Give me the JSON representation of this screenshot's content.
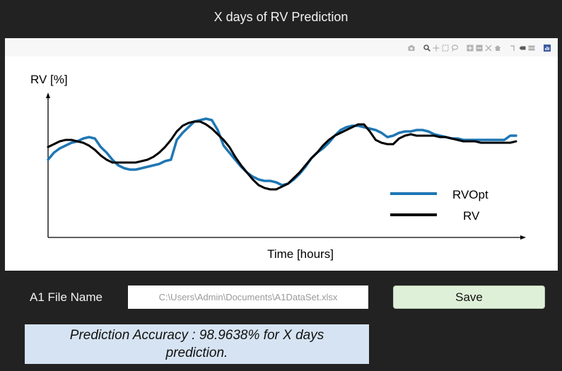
{
  "window": {
    "title": "X days of RV Prediction"
  },
  "modebar": {
    "buttons": [
      "camera-icon",
      "zoom-icon",
      "pan-icon",
      "box-select-icon",
      "lasso-select-icon",
      "zoom-in-icon",
      "zoom-out-icon",
      "autoscale-icon",
      "home-icon",
      "spike-lines-icon",
      "hover-closest-icon",
      "hover-compare-icon",
      "plotly-logo-icon"
    ]
  },
  "chart_data": {
    "type": "line",
    "ylabel": "RV [%]",
    "xlabel": "Time [hours]",
    "legend_position": "right",
    "axis_ticks": "none",
    "grid": false,
    "x": [
      0,
      1,
      2,
      3,
      4,
      5,
      6,
      7,
      8,
      9,
      10,
      11,
      12,
      13,
      14,
      15,
      16,
      17,
      18,
      19,
      20,
      21,
      22,
      23,
      24,
      25,
      26,
      27,
      28,
      29,
      30,
      31,
      32,
      33,
      34,
      35,
      36,
      37,
      38,
      39,
      40,
      41,
      42,
      43,
      44,
      45,
      46,
      47,
      48,
      49,
      50,
      51,
      52,
      53,
      54,
      55,
      56,
      57,
      58,
      59,
      60,
      61,
      62,
      63,
      64,
      65,
      66,
      67,
      68,
      69,
      70,
      71,
      72,
      73,
      74,
      75,
      76,
      77,
      78,
      79,
      80
    ],
    "series": [
      {
        "name": "RVOpt",
        "color": "#1f77b4",
        "values": [
          0.55,
          0.6,
          0.63,
          0.65,
          0.67,
          0.68,
          0.7,
          0.71,
          0.7,
          0.64,
          0.6,
          0.55,
          0.51,
          0.49,
          0.48,
          0.48,
          0.49,
          0.5,
          0.51,
          0.52,
          0.54,
          0.55,
          0.69,
          0.74,
          0.78,
          0.82,
          0.83,
          0.84,
          0.83,
          0.76,
          0.65,
          0.6,
          0.55,
          0.5,
          0.46,
          0.43,
          0.41,
          0.4,
          0.4,
          0.39,
          0.37,
          0.38,
          0.41,
          0.45,
          0.5,
          0.56,
          0.6,
          0.63,
          0.67,
          0.72,
          0.76,
          0.78,
          0.79,
          0.79,
          0.78,
          0.77,
          0.76,
          0.74,
          0.71,
          0.72,
          0.74,
          0.75,
          0.75,
          0.76,
          0.76,
          0.75,
          0.73,
          0.72,
          0.71,
          0.7,
          0.7,
          0.69,
          0.69,
          0.69,
          0.69,
          0.69,
          0.69,
          0.69,
          0.69,
          0.72,
          0.72
        ]
      },
      {
        "name": "RV",
        "color": "#000000",
        "values": [
          0.64,
          0.66,
          0.68,
          0.69,
          0.69,
          0.68,
          0.67,
          0.65,
          0.62,
          0.58,
          0.55,
          0.53,
          0.53,
          0.53,
          0.53,
          0.53,
          0.54,
          0.55,
          0.57,
          0.6,
          0.64,
          0.69,
          0.75,
          0.79,
          0.81,
          0.82,
          0.82,
          0.8,
          0.77,
          0.73,
          0.69,
          0.64,
          0.57,
          0.51,
          0.46,
          0.41,
          0.37,
          0.35,
          0.34,
          0.34,
          0.36,
          0.38,
          0.42,
          0.46,
          0.51,
          0.56,
          0.6,
          0.65,
          0.69,
          0.72,
          0.74,
          0.76,
          0.78,
          0.8,
          0.8,
          0.75,
          0.69,
          0.67,
          0.66,
          0.66,
          0.7,
          0.72,
          0.73,
          0.72,
          0.72,
          0.72,
          0.72,
          0.71,
          0.71,
          0.7,
          0.69,
          0.68,
          0.68,
          0.68,
          0.67,
          0.67,
          0.67,
          0.67,
          0.67,
          0.67,
          0.68
        ]
      }
    ],
    "ylim": [
      0,
      1
    ],
    "xlim": [
      0,
      80
    ]
  },
  "form": {
    "file_label": "A1 File Name",
    "file_value": "C:\\Users\\Admin\\Documents\\A1DataSet.xlsx",
    "save_label": "Save"
  },
  "result": {
    "accuracy_text": "Prediction Accuracy : 98.9638% for X days prediction."
  }
}
